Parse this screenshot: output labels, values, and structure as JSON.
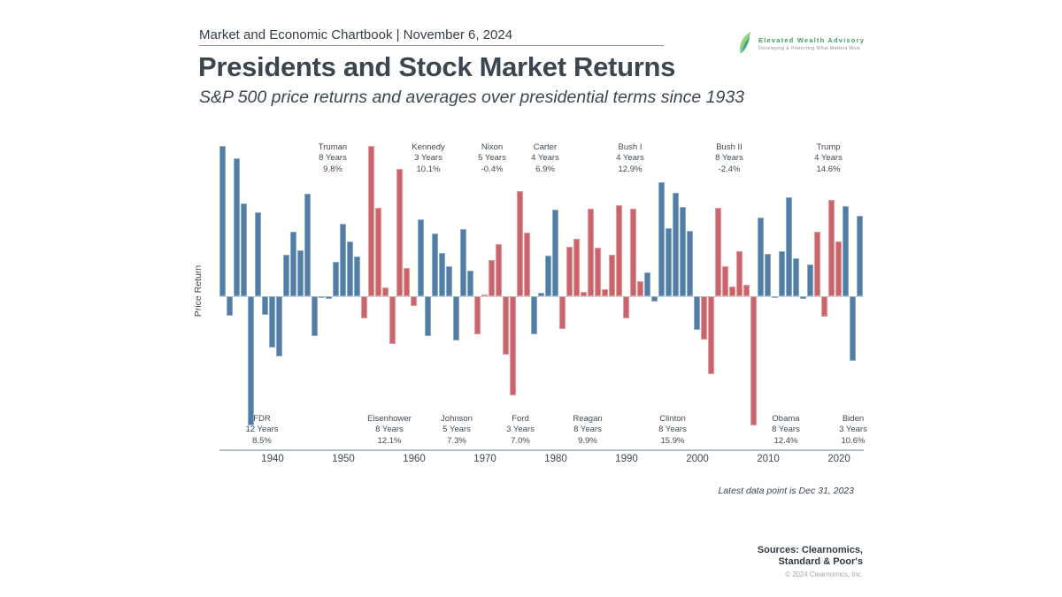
{
  "header": {
    "chartbook_label": "Market and Economic Chartbook | November 6, 2024",
    "title": "Presidents and Stock Market Returns",
    "subtitle": "S&P 500 price returns and averages over presidential terms since 1933"
  },
  "logo": {
    "name": "Elevated Wealth Advisory",
    "tagline": "Developing & Protecting What Matters Most"
  },
  "chart_data": {
    "type": "bar",
    "title": "Presidents and Stock Market Returns",
    "subtitle": "S&P 500 price returns and averages over presidential terms since 1933",
    "ylabel": "Price Return",
    "xlabel": "",
    "grid": false,
    "start_year": 1933,
    "end_year": 2023,
    "ylim": [
      -40,
      47
    ],
    "x_ticks": [
      "1940",
      "1950",
      "1960",
      "1970",
      "1980",
      "1990",
      "2000",
      "2010",
      "2020"
    ],
    "values": [
      45.0,
      -5.9,
      41.4,
      27.9,
      -38.6,
      25.2,
      -5.5,
      -15.3,
      -17.9,
      12.4,
      19.4,
      13.8,
      30.7,
      -11.9,
      0.0,
      -0.7,
      10.3,
      21.8,
      16.5,
      11.8,
      -6.6,
      45.0,
      26.4,
      2.6,
      -14.3,
      38.1,
      8.5,
      -3.0,
      23.1,
      -11.8,
      18.9,
      13.0,
      9.1,
      -13.1,
      20.1,
      7.7,
      -11.4,
      0.1,
      10.8,
      15.6,
      -17.4,
      -29.7,
      31.5,
      19.1,
      -11.5,
      1.1,
      12.3,
      25.8,
      -9.7,
      14.8,
      17.3,
      1.4,
      26.3,
      14.6,
      2.0,
      12.4,
      27.3,
      -6.6,
      26.3,
      4.5,
      7.1,
      -1.5,
      34.1,
      20.3,
      31.0,
      26.7,
      19.5,
      -10.1,
      -13.0,
      -23.4,
      26.4,
      9.0,
      3.0,
      13.6,
      3.5,
      -38.5,
      23.5,
      12.8,
      0.0,
      13.4,
      29.6,
      11.4,
      -0.7,
      9.5,
      19.4,
      -6.2,
      28.9,
      16.3,
      26.9,
      -19.4,
      24.2
    ],
    "colors": {
      "democrat": "#4f7da9",
      "republican": "#cf6267"
    },
    "presidents": [
      {
        "name": "FDR",
        "term_label": "12 Years",
        "avg_label": "8.5%",
        "party": "D",
        "start": 1933,
        "end": 1944,
        "label_position": "bottom"
      },
      {
        "name": "Truman",
        "term_label": "8 Years",
        "avg_label": "9.8%",
        "party": "D",
        "start": 1945,
        "end": 1952,
        "label_position": "top"
      },
      {
        "name": "Eisenhower",
        "term_label": "8 Years",
        "avg_label": "12.1%",
        "party": "R",
        "start": 1953,
        "end": 1960,
        "label_position": "bottom"
      },
      {
        "name": "Kennedy",
        "term_label": "3 Years",
        "avg_label": "10.1%",
        "party": "D",
        "start": 1961,
        "end": 1963,
        "label_position": "top"
      },
      {
        "name": "Johnson",
        "term_label": "5 Years",
        "avg_label": "7.3%",
        "party": "D",
        "start": 1964,
        "end": 1968,
        "label_position": "bottom"
      },
      {
        "name": "Nixon",
        "term_label": "5 Years",
        "avg_label": "-0.4%",
        "party": "R",
        "start": 1969,
        "end": 1973,
        "label_position": "top"
      },
      {
        "name": "Ford",
        "term_label": "3 Years",
        "avg_label": "7.0%",
        "party": "R",
        "start": 1974,
        "end": 1976,
        "label_position": "bottom"
      },
      {
        "name": "Carter",
        "term_label": "4 Years",
        "avg_label": "6.9%",
        "party": "D",
        "start": 1977,
        "end": 1980,
        "label_position": "top"
      },
      {
        "name": "Reagan",
        "term_label": "8 Years",
        "avg_label": "9.9%",
        "party": "R",
        "start": 1981,
        "end": 1988,
        "label_position": "bottom"
      },
      {
        "name": "Bush I",
        "term_label": "4 Years",
        "avg_label": "12.9%",
        "party": "R",
        "start": 1989,
        "end": 1992,
        "label_position": "top"
      },
      {
        "name": "Clinton",
        "term_label": "8 Years",
        "avg_label": "15.9%",
        "party": "D",
        "start": 1993,
        "end": 2000,
        "label_position": "bottom"
      },
      {
        "name": "Bush II",
        "term_label": "8 Years",
        "avg_label": "-2.4%",
        "party": "R",
        "start": 2001,
        "end": 2008,
        "label_position": "top"
      },
      {
        "name": "Obama",
        "term_label": "8 Years",
        "avg_label": "12.4%",
        "party": "D",
        "start": 2009,
        "end": 2016,
        "label_position": "bottom"
      },
      {
        "name": "Trump",
        "term_label": "4 Years",
        "avg_label": "14.6%",
        "party": "R",
        "start": 2017,
        "end": 2020,
        "label_position": "top"
      },
      {
        "name": "Biden",
        "term_label": "3 Years",
        "avg_label": "10.6%",
        "party": "D",
        "start": 2021,
        "end": 2023,
        "label_position": "bottom"
      }
    ],
    "footnote": "Latest data point is Dec 31, 2023"
  },
  "footer": {
    "sources_line1": "Sources: Clearnomics,",
    "sources_line2": "Standard & Poor's",
    "copyright": "© 2024 Clearnomics, Inc."
  }
}
